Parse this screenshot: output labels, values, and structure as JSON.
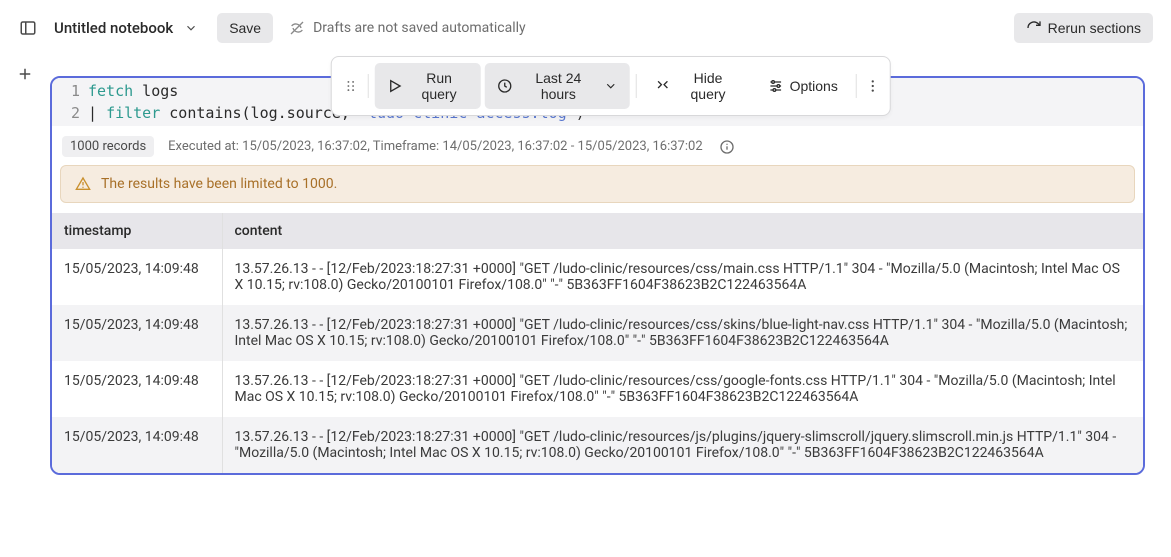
{
  "header": {
    "title": "Untitled notebook",
    "save_label": "Save",
    "draft_note": "Drafts are not saved automatically",
    "rerun_label": "Rerun sections"
  },
  "toolbar": {
    "run_label": "Run query",
    "timeframe_label": "Last 24 hours",
    "hide_label": "Hide query",
    "options_label": "Options"
  },
  "code": {
    "line1_kw": "fetch",
    "line1_rest": " logs",
    "line2_prefix": "| ",
    "line2_kw": "filter",
    "line2_mid": " contains(log.source, ",
    "line2_str": "\"ludo-clinic-access.log\"",
    "line2_end": ")",
    "gutter": [
      "1",
      "2"
    ]
  },
  "meta": {
    "records": "1000 records",
    "executed": "Executed at: 15/05/2023, 16:37:02, Timeframe: 14/05/2023, 16:37:02 - 15/05/2023, 16:37:02"
  },
  "warning": "The results have been limited to 1000.",
  "table": {
    "columns": [
      "timestamp",
      "content"
    ],
    "rows": [
      [
        "15/05/2023, 14:09:48",
        "13.57.26.13 - - [12/Feb/2023:18:27:31 +0000] \"GET /ludo-clinic/resources/css/main.css HTTP/1.1\" 304 - \"Mozilla/5.0 (Macintosh; Intel Mac OS X 10.15; rv:108.0) Gecko/20100101 Firefox/108.0\" \"-\" 5B363FF1604F38623B2C122463564A"
      ],
      [
        "15/05/2023, 14:09:48",
        "13.57.26.13 - - [12/Feb/2023:18:27:31 +0000] \"GET /ludo-clinic/resources/css/skins/blue-light-nav.css HTTP/1.1\" 304 - \"Mozilla/5.0 (Macintosh; Intel Mac OS X 10.15; rv:108.0) Gecko/20100101 Firefox/108.0\" \"-\" 5B363FF1604F38623B2C122463564A"
      ],
      [
        "15/05/2023, 14:09:48",
        "13.57.26.13 - - [12/Feb/2023:18:27:31 +0000] \"GET /ludo-clinic/resources/css/google-fonts.css HTTP/1.1\" 304 - \"Mozilla/5.0 (Macintosh; Intel Mac OS X 10.15; rv:108.0) Gecko/20100101 Firefox/108.0\" \"-\" 5B363FF1604F38623B2C122463564A"
      ],
      [
        "15/05/2023, 14:09:48",
        "13.57.26.13 - - [12/Feb/2023:18:27:31 +0000] \"GET /ludo-clinic/resources/js/plugins/jquery-slimscroll/jquery.slimscroll.min.js HTTP/1.1\" 304 - \"Mozilla/5.0 (Macintosh; Intel Mac OS X 10.15; rv:108.0) Gecko/20100101 Firefox/108.0\" \"-\" 5B363FF1604F38623B2C122463564A"
      ]
    ]
  },
  "colors": {
    "accent": "#5b6bdb",
    "warn_bg": "#f6ece0",
    "warn_border": "#e8d6bd",
    "warn_text": "#a87028"
  }
}
